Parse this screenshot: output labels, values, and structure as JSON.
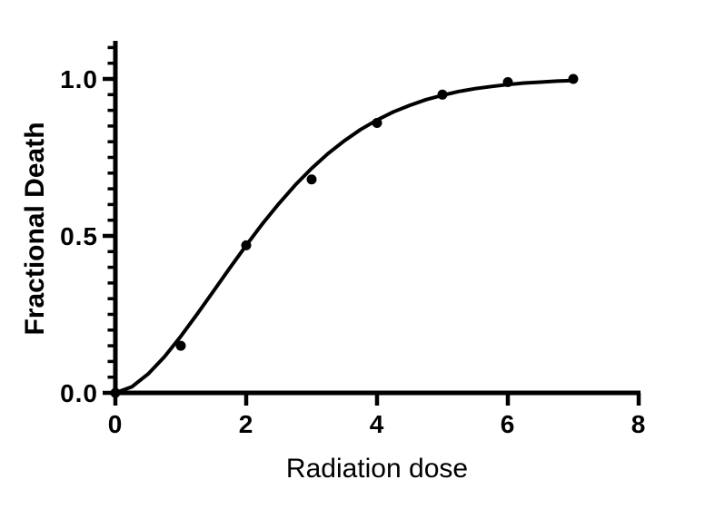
{
  "figure": {
    "background_color": "#ffffff",
    "foreground_color": "#000000"
  },
  "chart_data": {
    "type": "scatter",
    "title": "",
    "xlabel": "Radiation dose",
    "ylabel": "Fractional Death",
    "xlim": [
      0,
      8
    ],
    "ylim": [
      0,
      1.1
    ],
    "grid": false,
    "legend": "none",
    "x_ticks": [
      0,
      2,
      4,
      6,
      8
    ],
    "x_tick_labels": [
      "0",
      "2",
      "4",
      "6",
      "8"
    ],
    "y_major_ticks": [
      0,
      0.5,
      1
    ],
    "y_tick_labels": [
      "0.0",
      "0.5",
      "1.0"
    ],
    "y_minor_tick_step": 0.05,
    "marker_color": "#000000",
    "line_color": "#000000",
    "series": [
      {
        "name": "observed-points",
        "type": "scatter",
        "marker": "filled-circle",
        "x": [
          0,
          1,
          2,
          3,
          4,
          5,
          6,
          7
        ],
        "y": [
          0.0,
          0.15,
          0.47,
          0.68,
          0.86,
          0.95,
          0.99,
          1.0
        ]
      },
      {
        "name": "sigmoid-fit",
        "type": "line",
        "x": [
          0,
          0.25,
          0.5,
          0.75,
          1,
          1.25,
          1.5,
          1.75,
          2,
          2.25,
          2.5,
          2.75,
          3,
          3.25,
          3.5,
          3.75,
          4,
          4.25,
          4.5,
          4.75,
          5,
          5.25,
          5.5,
          5.75,
          6,
          6.25,
          6.5,
          6.75,
          7
        ],
        "y": [
          0.0,
          0.019,
          0.06,
          0.115,
          0.18,
          0.251,
          0.324,
          0.398,
          0.47,
          0.539,
          0.603,
          0.662,
          0.715,
          0.762,
          0.803,
          0.839,
          0.869,
          0.895,
          0.916,
          0.934,
          0.948,
          0.96,
          0.969,
          0.976,
          0.982,
          0.987,
          0.99,
          0.993,
          0.995
        ]
      }
    ]
  }
}
